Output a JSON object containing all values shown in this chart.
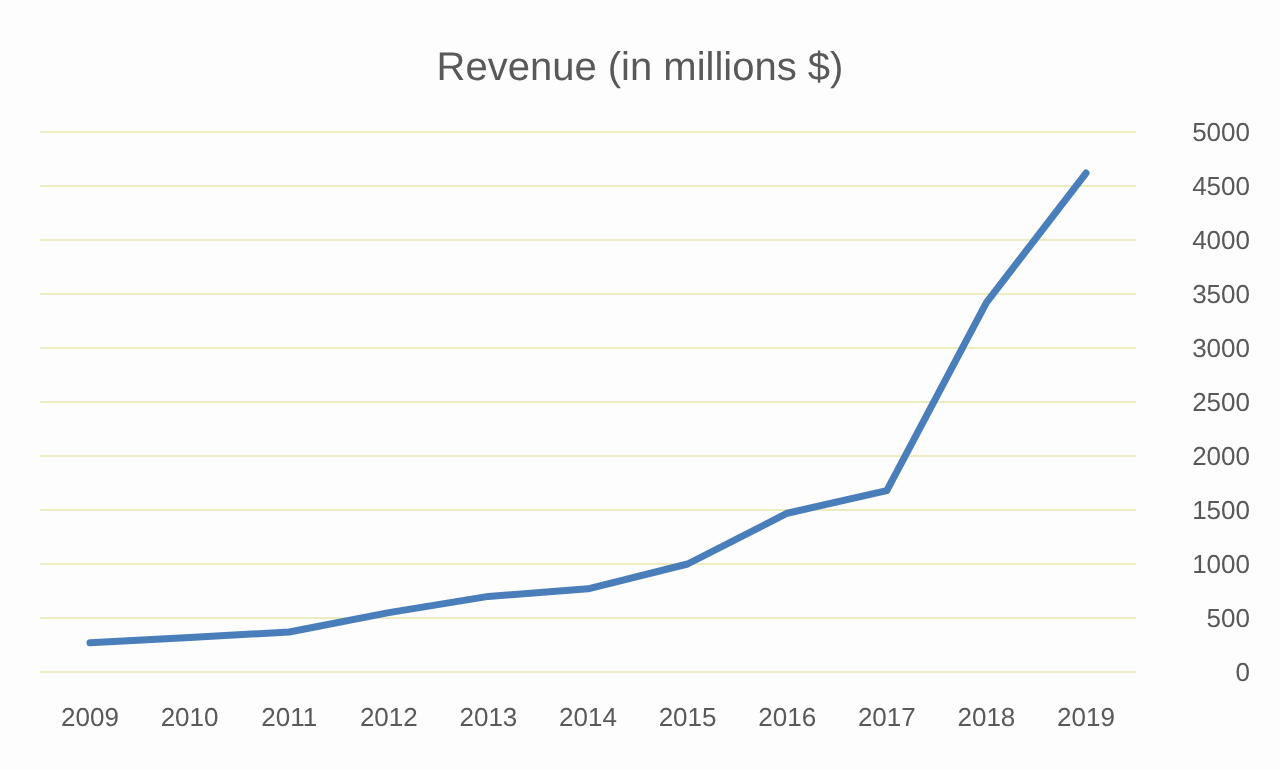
{
  "chart_data": {
    "type": "line",
    "title": "Revenue (in millions $)",
    "categories": [
      "2009",
      "2010",
      "2011",
      "2012",
      "2013",
      "2014",
      "2015",
      "2016",
      "2017",
      "2018",
      "2019"
    ],
    "series": [
      {
        "color": "#4a7ebb",
        "values": [
          270,
          320,
          370,
          550,
          700,
          770,
          1000,
          1470,
          1680,
          3420,
          4620
        ]
      }
    ],
    "ylim": [
      0,
      5000
    ],
    "yticks": [
      0,
      500,
      1000,
      1500,
      2000,
      2500,
      3000,
      3500,
      4000,
      4500,
      5000
    ],
    "grid": "y",
    "marker": "none",
    "line_style": "solid"
  }
}
